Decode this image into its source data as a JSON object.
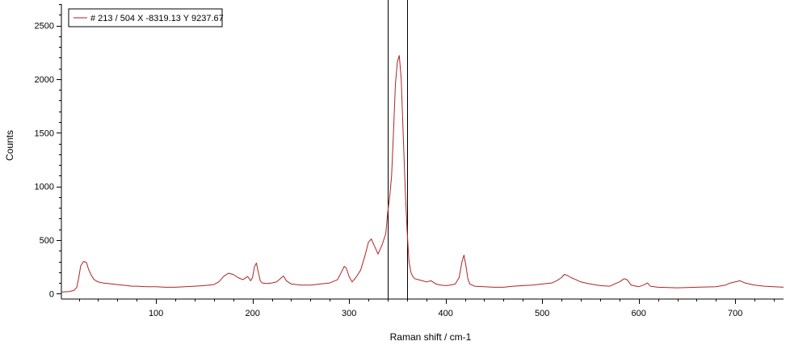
{
  "chart_data": {
    "type": "line",
    "title": "",
    "xlabel": "Raman shift / cm-1",
    "ylabel": "Counts",
    "xlim": [
      2,
      750
    ],
    "ylim": [
      -50,
      2700
    ],
    "x_ticks": [
      100,
      200,
      300,
      400,
      500,
      600,
      700
    ],
    "y_ticks": [
      0,
      500,
      1000,
      1500,
      2000,
      2500
    ],
    "grid": false,
    "legend_position": "top-left",
    "cursors": [
      340,
      360
    ],
    "series": [
      {
        "name": "# 213 / 504 X -8319.13 Y 9237.67",
        "color": "#b22222",
        "x": [
          2,
          10,
          15,
          18,
          20,
          22,
          25,
          28,
          30,
          33,
          36,
          40,
          45,
          50,
          55,
          60,
          65,
          70,
          75,
          80,
          90,
          100,
          110,
          120,
          130,
          140,
          150,
          160,
          165,
          170,
          175,
          180,
          185,
          190,
          195,
          198,
          200,
          202,
          204,
          206,
          208,
          210,
          215,
          220,
          225,
          230,
          232,
          235,
          240,
          250,
          260,
          270,
          280,
          288,
          292,
          295,
          297,
          300,
          303,
          307,
          312,
          316,
          320,
          323,
          326,
          330,
          334,
          338,
          340,
          342,
          344,
          346,
          348,
          350,
          352,
          354,
          356,
          358,
          360,
          362,
          364,
          366,
          368,
          372,
          376,
          380,
          385,
          390,
          395,
          400,
          405,
          410,
          414,
          417,
          419,
          421,
          423,
          425,
          430,
          440,
          450,
          460,
          470,
          480,
          490,
          500,
          505,
          510,
          515,
          520,
          523,
          526,
          530,
          535,
          540,
          545,
          550,
          560,
          570,
          575,
          580,
          585,
          588,
          592,
          600,
          605,
          609,
          612,
          620,
          640,
          660,
          680,
          690,
          695,
          700,
          705,
          710,
          720,
          730,
          740,
          750
        ],
        "y": [
          15,
          20,
          30,
          60,
          150,
          260,
          300,
          290,
          230,
          170,
          130,
          110,
          100,
          95,
          90,
          85,
          80,
          75,
          70,
          70,
          65,
          65,
          60,
          60,
          65,
          70,
          75,
          85,
          110,
          160,
          190,
          180,
          150,
          130,
          160,
          120,
          150,
          250,
          285,
          200,
          120,
          100,
          95,
          100,
          110,
          150,
          165,
          120,
          90,
          80,
          80,
          90,
          100,
          130,
          200,
          255,
          240,
          160,
          110,
          150,
          220,
          340,
          480,
          510,
          450,
          370,
          450,
          560,
          760,
          900,
          1100,
          1500,
          1950,
          2160,
          2220,
          2000,
          1500,
          1000,
          600,
          300,
          200,
          160,
          140,
          130,
          120,
          110,
          120,
          90,
          80,
          75,
          80,
          90,
          150,
          300,
          360,
          260,
          140,
          90,
          70,
          65,
          60,
          60,
          70,
          75,
          80,
          90,
          95,
          100,
          120,
          150,
          180,
          170,
          150,
          130,
          110,
          100,
          90,
          75,
          70,
          90,
          110,
          140,
          130,
          80,
          65,
          80,
          100,
          70,
          60,
          55,
          60,
          65,
          80,
          100,
          110,
          120,
          100,
          80,
          70,
          65,
          60
        ]
      }
    ]
  }
}
